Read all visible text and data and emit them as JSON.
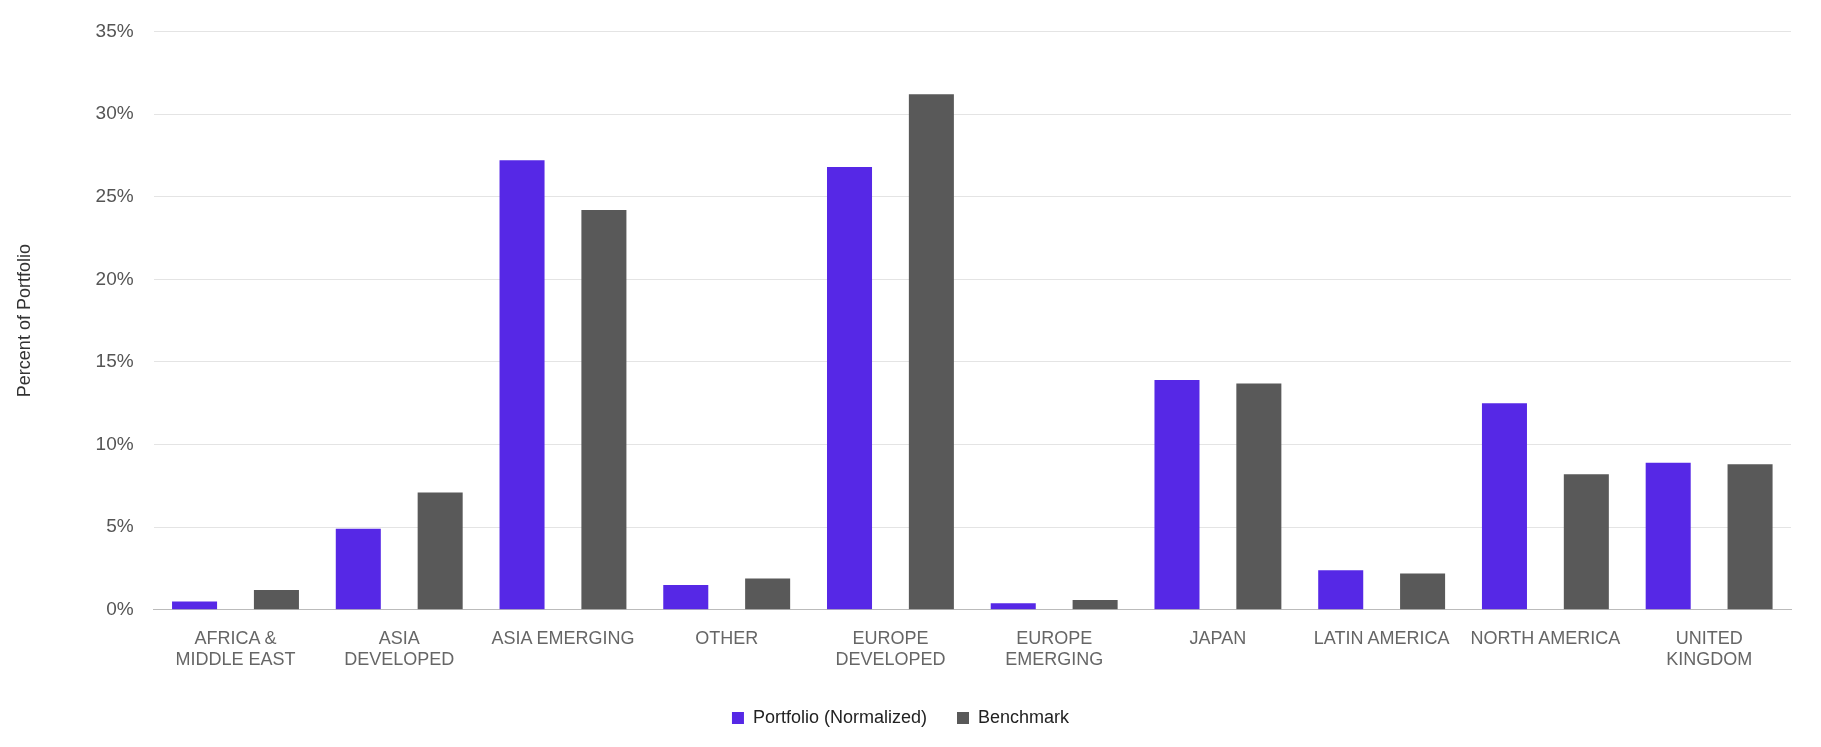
{
  "chart_data": {
    "type": "bar",
    "ylabel": "Percent of Portfolio",
    "categories": [
      "AFRICA & MIDDLE EAST",
      "ASIA DEVELOPED",
      "ASIA EMERGING",
      "OTHER",
      "EUROPE DEVELOPED",
      "EUROPE EMERGING",
      "JAPAN",
      "LATIN AMERICA",
      "NORTH AMERICA",
      "UNITED KINGDOM"
    ],
    "series": [
      {
        "name": "Portfolio (Normalized)",
        "color": "#5628e6",
        "values": [
          0.5,
          4.9,
          27.2,
          1.5,
          26.8,
          0.4,
          13.9,
          2.4,
          12.5,
          8.9
        ]
      },
      {
        "name": "Benchmark",
        "color": "#595959",
        "values": [
          1.2,
          7.1,
          24.2,
          1.9,
          31.2,
          0.6,
          13.7,
          2.2,
          8.2,
          8.8
        ]
      }
    ],
    "ylim": [
      0,
      35
    ],
    "yticks": [
      {
        "value": 0,
        "label": "0%"
      },
      {
        "value": 5,
        "label": "5%"
      },
      {
        "value": 10,
        "label": "10%"
      },
      {
        "value": 15,
        "label": "15%"
      },
      {
        "value": 20,
        "label": "20%"
      },
      {
        "value": 25,
        "label": "25%"
      },
      {
        "value": 30,
        "label": "30%"
      },
      {
        "value": 35,
        "label": "35%"
      }
    ],
    "grid": "y",
    "legend": "bottom"
  }
}
